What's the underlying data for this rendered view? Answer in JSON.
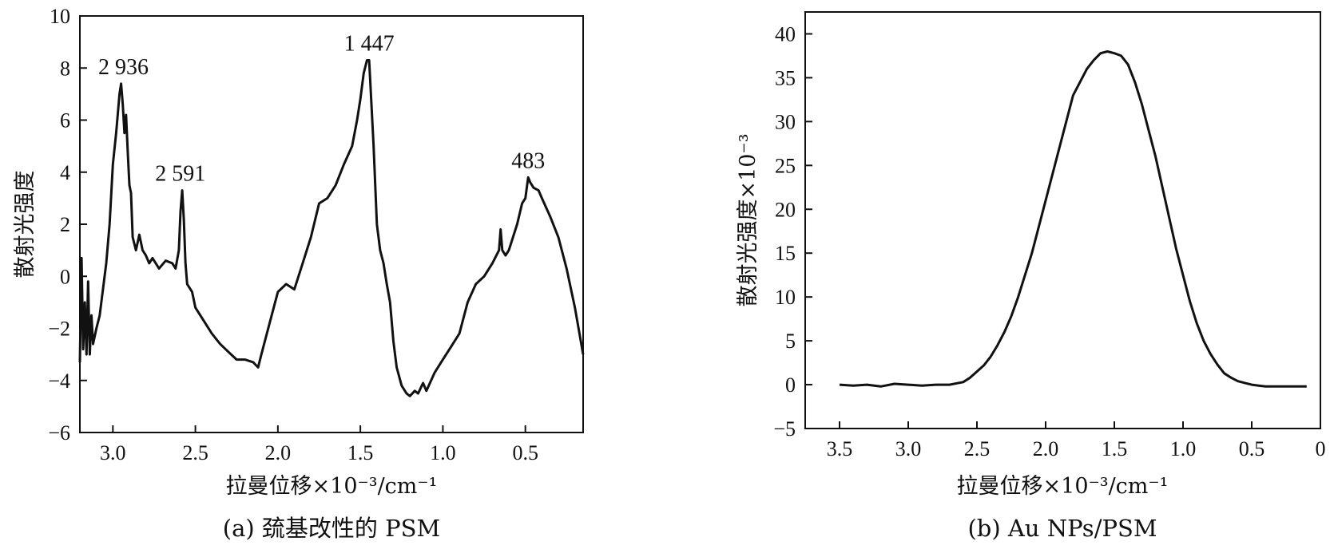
{
  "chart_data": [
    {
      "type": "line",
      "caption": "(a) 巯基改性的 PSM",
      "xlabel": "拉曼位移×10⁻³/cm⁻¹",
      "ylabel": "散射光强度",
      "xlim": [
        3.2,
        0.15
      ],
      "ylim": [
        -6,
        10
      ],
      "x_reversed": true,
      "xticks": [
        "3.0",
        "2.5",
        "2.0",
        "1.5",
        "1.0",
        "0.5"
      ],
      "yticks": [
        "10",
        "8",
        "6",
        "4",
        "2",
        "0",
        "−2",
        "−4",
        "−6"
      ],
      "annotations": [
        {
          "text": "2 936",
          "x": 2.936,
          "y": 7.4
        },
        {
          "text": "2 591",
          "x": 2.591,
          "y": 3.3
        },
        {
          "text": "1 447",
          "x": 1.447,
          "y": 8.3
        },
        {
          "text": "483",
          "x": 0.483,
          "y": 3.8
        }
      ],
      "series": [
        {
          "x": [
            3.2,
            3.19,
            3.18,
            3.17,
            3.16,
            3.15,
            3.14,
            3.13,
            3.12,
            3.1,
            3.08,
            3.06,
            3.04,
            3.02,
            3.0,
            2.98,
            2.96,
            2.95,
            2.94,
            2.93,
            2.92,
            2.91,
            2.9,
            2.89,
            2.88,
            2.86,
            2.84,
            2.82,
            2.8,
            2.78,
            2.76,
            2.72,
            2.68,
            2.64,
            2.62,
            2.6,
            2.59,
            2.58,
            2.57,
            2.56,
            2.55,
            2.52,
            2.5,
            2.45,
            2.4,
            2.35,
            2.3,
            2.25,
            2.2,
            2.15,
            2.12,
            2.1,
            2.05,
            2.0,
            1.95,
            1.9,
            1.85,
            1.8,
            1.75,
            1.7,
            1.65,
            1.6,
            1.55,
            1.52,
            1.5,
            1.48,
            1.46,
            1.447,
            1.44,
            1.42,
            1.4,
            1.38,
            1.36,
            1.34,
            1.32,
            1.3,
            1.28,
            1.25,
            1.22,
            1.2,
            1.17,
            1.15,
            1.12,
            1.1,
            1.05,
            1.0,
            0.95,
            0.9,
            0.85,
            0.8,
            0.75,
            0.7,
            0.66,
            0.65,
            0.64,
            0.62,
            0.6,
            0.55,
            0.52,
            0.5,
            0.483,
            0.47,
            0.45,
            0.42,
            0.4,
            0.35,
            0.3,
            0.25,
            0.2,
            0.15
          ],
          "y": [
            -3.3,
            0.7,
            -2.8,
            -1.0,
            -3.0,
            -0.2,
            -3.0,
            -1.5,
            -2.6,
            -2.0,
            -1.5,
            -0.5,
            0.5,
            2.0,
            4.3,
            5.5,
            7.0,
            7.4,
            6.6,
            5.5,
            6.2,
            4.8,
            3.5,
            3.2,
            1.5,
            1.0,
            1.6,
            1.0,
            0.8,
            0.5,
            0.7,
            0.3,
            0.6,
            0.5,
            0.3,
            1.0,
            2.5,
            3.3,
            2.2,
            0.5,
            -0.3,
            -0.6,
            -1.2,
            -1.7,
            -2.2,
            -2.6,
            -2.9,
            -3.2,
            -3.2,
            -3.3,
            -3.5,
            -3.0,
            -1.8,
            -0.6,
            -0.3,
            -0.5,
            0.5,
            1.5,
            2.8,
            3.0,
            3.5,
            4.3,
            5.0,
            6.0,
            6.8,
            7.8,
            8.3,
            8.3,
            7.5,
            5.0,
            2.0,
            1.0,
            0.5,
            -0.3,
            -1.0,
            -2.5,
            -3.5,
            -4.2,
            -4.5,
            -4.6,
            -4.4,
            -4.5,
            -4.1,
            -4.4,
            -3.7,
            -3.2,
            -2.7,
            -2.2,
            -1.0,
            -0.3,
            0.0,
            0.5,
            1.0,
            1.8,
            1.0,
            0.8,
            1.0,
            2.0,
            2.8,
            3.0,
            3.8,
            3.6,
            3.4,
            3.3,
            3.0,
            2.3,
            1.5,
            0.3,
            -1.2,
            -3.0
          ]
        }
      ]
    },
    {
      "type": "line",
      "caption": "(b) Au NPs/PSM",
      "xlabel": "拉曼位移×10⁻³/cm⁻¹",
      "ylabel": "散射光强度×10⁻³",
      "xlim": [
        3.75,
        0
      ],
      "ylim": [
        -5,
        42.5
      ],
      "x_reversed": true,
      "xticks": [
        "3.5",
        "3.0",
        "2.5",
        "2.0",
        "1.5",
        "1.0",
        "0.5",
        "0"
      ],
      "yticks": [
        "40",
        "35",
        "30",
        "25",
        "20",
        "15",
        "10",
        "5",
        "0",
        "−5"
      ],
      "series": [
        {
          "x": [
            3.5,
            3.4,
            3.3,
            3.2,
            3.1,
            3.0,
            2.9,
            2.8,
            2.7,
            2.6,
            2.55,
            2.5,
            2.45,
            2.4,
            2.35,
            2.3,
            2.25,
            2.2,
            2.15,
            2.1,
            2.05,
            2.0,
            1.95,
            1.9,
            1.85,
            1.8,
            1.75,
            1.7,
            1.65,
            1.6,
            1.55,
            1.5,
            1.45,
            1.4,
            1.35,
            1.3,
            1.25,
            1.2,
            1.15,
            1.1,
            1.05,
            1.0,
            0.95,
            0.9,
            0.85,
            0.8,
            0.75,
            0.7,
            0.65,
            0.6,
            0.55,
            0.5,
            0.45,
            0.4,
            0.35,
            0.3,
            0.25,
            0.2,
            0.15,
            0.1
          ],
          "y": [
            0.0,
            -0.1,
            0.0,
            -0.2,
            0.1,
            0.0,
            -0.1,
            0.0,
            0.0,
            0.3,
            0.8,
            1.5,
            2.2,
            3.2,
            4.5,
            6.0,
            7.8,
            10.0,
            12.5,
            15.0,
            18.0,
            21.0,
            24.0,
            27.0,
            30.0,
            33.0,
            34.5,
            36.0,
            37.0,
            37.8,
            38.0,
            37.8,
            37.5,
            36.5,
            34.5,
            32.0,
            29.0,
            26.0,
            22.5,
            19.0,
            15.5,
            12.5,
            9.5,
            7.0,
            5.0,
            3.5,
            2.3,
            1.3,
            0.8,
            0.4,
            0.2,
            0.0,
            -0.1,
            -0.2,
            -0.2,
            -0.2,
            -0.2,
            -0.2,
            -0.2,
            -0.2
          ]
        }
      ]
    }
  ]
}
